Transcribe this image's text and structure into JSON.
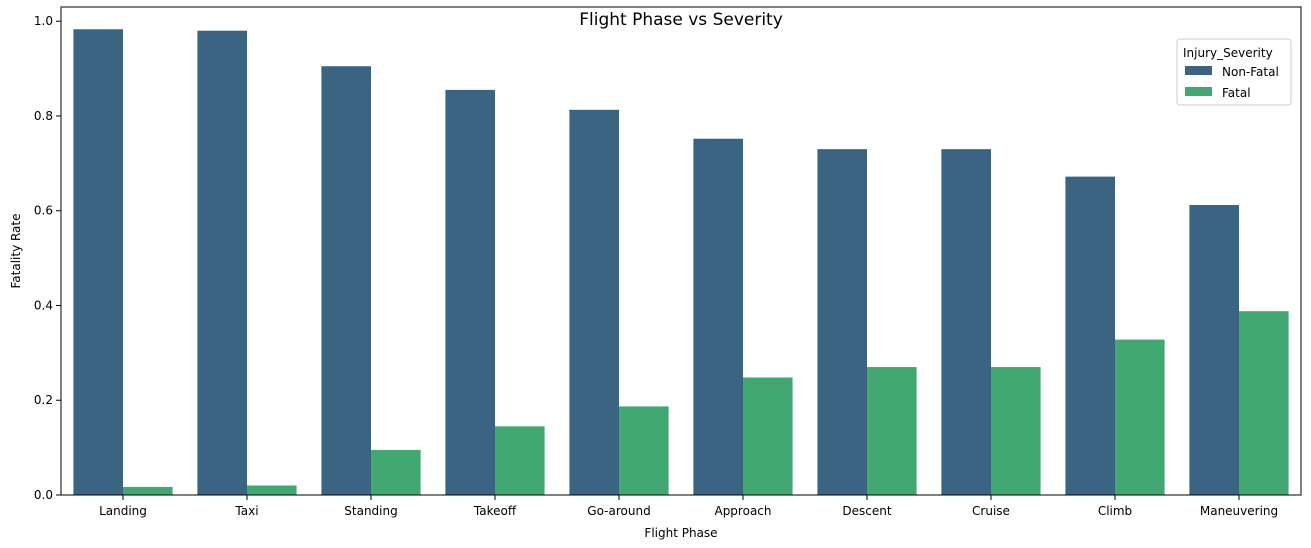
{
  "chart_data": {
    "type": "bar",
    "title": "Flight Phase vs Severity",
    "xlabel": "Flight Phase",
    "ylabel": "Fatality Rate",
    "ylim": [
      0,
      1.03
    ],
    "yticks": [
      "0.0",
      "0.2",
      "0.4",
      "0.6",
      "0.8",
      "1.0"
    ],
    "grid": false,
    "legend": {
      "title": "Injury_Severity",
      "placement": "top-right"
    },
    "categories": [
      "Landing",
      "Taxi",
      "Standing",
      "Takeoff",
      "Go-around",
      "Approach",
      "Descent",
      "Cruise",
      "Climb",
      "Maneuvering"
    ],
    "series": [
      {
        "name": "Non-Fatal",
        "color": "#3b6482",
        "values": [
          0.983,
          0.98,
          0.905,
          0.855,
          0.813,
          0.752,
          0.73,
          0.73,
          0.672,
          0.612
        ]
      },
      {
        "name": "Fatal",
        "color": "#42a872",
        "values": [
          0.017,
          0.02,
          0.095,
          0.145,
          0.187,
          0.248,
          0.27,
          0.27,
          0.328,
          0.388
        ]
      }
    ]
  }
}
